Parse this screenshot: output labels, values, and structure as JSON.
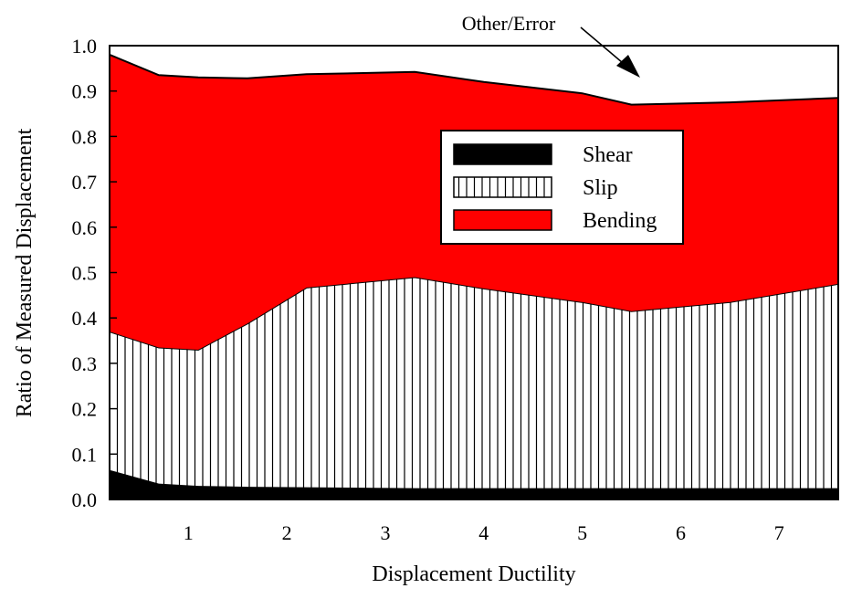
{
  "chart_data": {
    "type": "area",
    "stacked": true,
    "xlabel": "Displacement Ductility",
    "ylabel": "Ratio of Measured Displacement",
    "xlim": [
      0.2,
      7.6
    ],
    "ylim": [
      0.0,
      1.0
    ],
    "x_ticks": [
      1,
      2,
      3,
      4,
      5,
      6,
      7
    ],
    "y_ticks": [
      "0.0",
      "0.1",
      "0.2",
      "0.3",
      "0.4",
      "0.5",
      "0.6",
      "0.7",
      "0.8",
      "0.9",
      "1.0"
    ],
    "grid": false,
    "x": [
      0.2,
      0.7,
      1.1,
      1.6,
      2.2,
      3.3,
      4.0,
      5.0,
      5.5,
      6.5,
      7.6
    ],
    "series": [
      {
        "name": "Shear",
        "color": "#000000",
        "pattern": "solid",
        "values": [
          0.065,
          0.035,
          0.03,
          0.028,
          0.027,
          0.025,
          0.025,
          0.025,
          0.025,
          0.025,
          0.025
        ]
      },
      {
        "name": "Slip",
        "color": "#ffffff",
        "pattern": "vertical-lines",
        "values": [
          0.305,
          0.3,
          0.3,
          0.36,
          0.44,
          0.465,
          0.44,
          0.41,
          0.39,
          0.41,
          0.45
        ]
      },
      {
        "name": "Bending",
        "color": "#ff0000",
        "pattern": "solid",
        "values": [
          0.61,
          0.6,
          0.6,
          0.54,
          0.47,
          0.452,
          0.455,
          0.46,
          0.455,
          0.44,
          0.41
        ]
      }
    ],
    "remainder_label": "Other/Error",
    "legend_position": "center-right",
    "annotations": [
      {
        "text": "Other/Error",
        "points_to": "unshaded region above Bending"
      }
    ]
  }
}
